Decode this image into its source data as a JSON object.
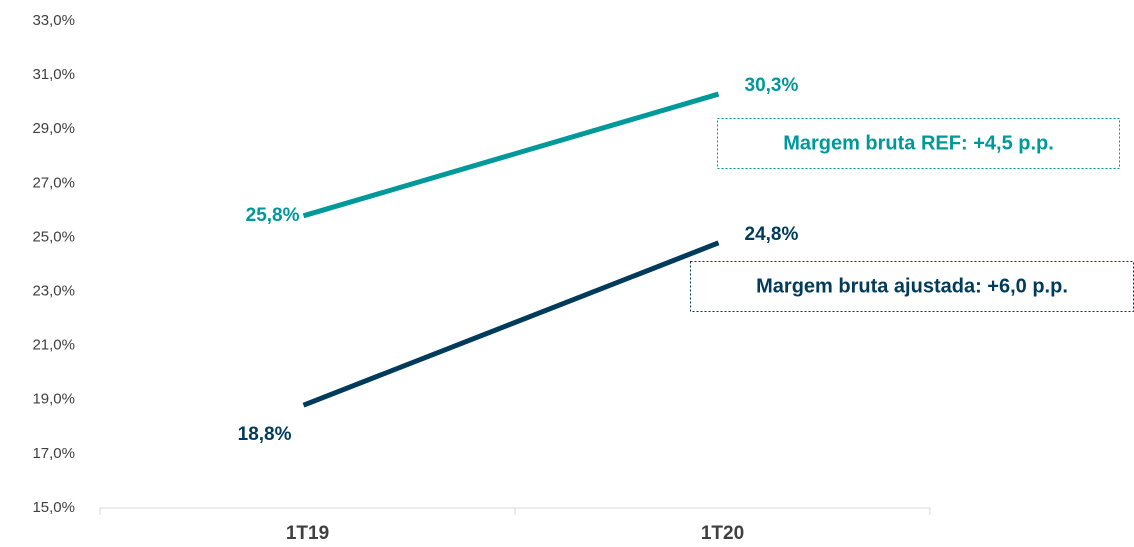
{
  "chart_data": {
    "type": "line",
    "categories": [
      "1T19",
      "1T20"
    ],
    "series": [
      {
        "color": "#00999a",
        "values": [
          25.8,
          30.3
        ],
        "value_labels": [
          "25,8%",
          "30,3%"
        ]
      },
      {
        "color": "#003b5c",
        "values": [
          18.8,
          24.8
        ],
        "value_labels": [
          "18,8%",
          "24,8%"
        ]
      }
    ],
    "ylim": [
      15,
      33
    ],
    "yticks": [
      {
        "value": 15,
        "label": "15,0%"
      },
      {
        "value": 17,
        "label": "17,0%"
      },
      {
        "value": 19,
        "label": "19,0%"
      },
      {
        "value": 21,
        "label": "21,0%"
      },
      {
        "value": 23,
        "label": "23,0%"
      },
      {
        "value": 25,
        "label": "25,0%"
      },
      {
        "value": 27,
        "label": "27,0%"
      },
      {
        "value": 29,
        "label": "29,0%"
      },
      {
        "value": 31,
        "label": "31,0%"
      },
      {
        "value": 33,
        "label": "33,0%"
      }
    ],
    "grid": false,
    "annotations": [
      {
        "text": "Margem bruta REF: +4,5 p.p.",
        "color": "#00999a"
      },
      {
        "text": "Margem bruta ajustada: +6,0 p.p.",
        "color": "#003b5c"
      }
    ]
  }
}
